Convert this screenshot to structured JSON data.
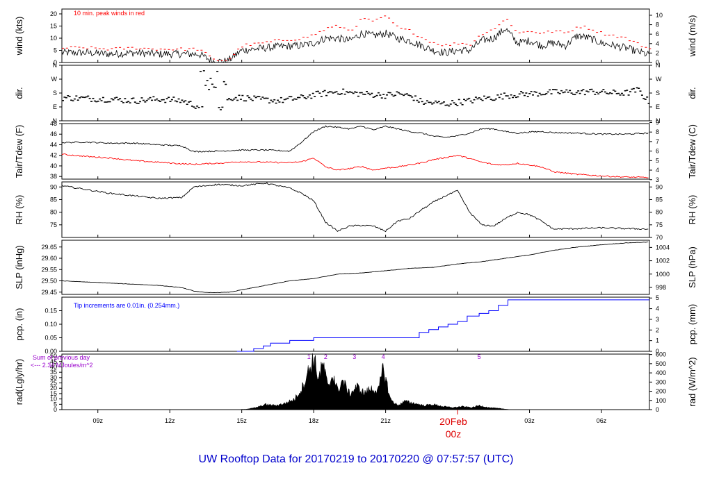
{
  "title": "UW Rooftop Data for 20170219  to  20170220 @ 07:57:57  (UTC)",
  "colors": {
    "black": "#000000",
    "red": "#ff0000",
    "blue": "#0000ff",
    "purple": "#9900cc",
    "title_blue": "#0000cc",
    "date_red": "#dd0000"
  },
  "x_axis": {
    "ticks": [
      "09z",
      "12z",
      "15z",
      "18z",
      "21z",
      "03z",
      "06z"
    ],
    "date_marker": "20Feb",
    "date_marker_hour": "00z"
  },
  "chart_data": [
    {
      "type": "line",
      "panel": "wind",
      "ylabel_left": "wind (kts)",
      "ylabel_right": "wind (m/s)",
      "yticks_left": [
        "0",
        "5",
        "10",
        "15",
        "20"
      ],
      "yticks_right": [
        "0",
        "2",
        "4",
        "6",
        "8",
        "10"
      ],
      "ylim": [
        0,
        22
      ],
      "annotation": "10 min. peak winds in red",
      "x_hours": [
        7.5,
        8.5,
        9.5,
        10.5,
        11.5,
        12.5,
        13.2,
        13.8,
        14.4,
        15.0,
        15.5,
        16.5,
        17.5,
        18.0,
        18.5,
        19.0,
        19.5,
        20.0,
        20.5,
        21.0,
        21.5,
        22.0,
        22.5,
        23.0,
        23.5,
        24.0,
        24.5,
        25.0,
        25.5,
        26.0,
        26.5,
        27.0,
        27.5,
        28.0,
        28.5,
        29.0,
        29.5,
        30.0,
        30.5,
        31.0,
        31.5,
        32.0
      ],
      "series": [
        {
          "name": "wind",
          "values": [
            4,
            4,
            3.5,
            4,
            3.5,
            3.5,
            3.5,
            0.5,
            0.5,
            5,
            5.5,
            6.5,
            7,
            8,
            10,
            10,
            9,
            12,
            11,
            12,
            10,
            9,
            7,
            5,
            4,
            5,
            5,
            9,
            10,
            14,
            8,
            9,
            7,
            8,
            7,
            11,
            10,
            8,
            7,
            6,
            4.5,
            3
          ]
        },
        {
          "name": "10 min. peak",
          "values": [
            6,
            6,
            5.5,
            6,
            5.5,
            5.5,
            5.5,
            1,
            1,
            7,
            7.5,
            9,
            10,
            11.5,
            14,
            15,
            13,
            18,
            17,
            19,
            14,
            13,
            10,
            8,
            7,
            8,
            7.5,
            12,
            14,
            18,
            12,
            13,
            12,
            13,
            12,
            15,
            14,
            12,
            11,
            10,
            7.5,
            5.5
          ]
        }
      ]
    },
    {
      "type": "scatter",
      "panel": "dir",
      "ylabel_left": "dir.",
      "ylabel_right": "dir.",
      "yticks_left": [
        "N",
        "E",
        "S",
        "W",
        "N"
      ],
      "yticks_right": [
        "N",
        "E",
        "S",
        "W",
        "N"
      ],
      "ylim": [
        0,
        360
      ],
      "x_hours": [
        7.5,
        8.5,
        9.5,
        10.5,
        11.5,
        12.5,
        13.0,
        13.3,
        13.5,
        13.7,
        14.0,
        14.5,
        15.0,
        15.5,
        16.5,
        17.5,
        18.0,
        18.5,
        19.0,
        19.5,
        20.0,
        20.5,
        21.0,
        21.5,
        22.0,
        22.5,
        23.0,
        23.5,
        24.0,
        24.5,
        25.0,
        25.5,
        26.0,
        26.5,
        27.0,
        27.5,
        28.0,
        28.5,
        29.0,
        29.5,
        30.0,
        30.5,
        31.0,
        31.5,
        32.0
      ],
      "series": [
        {
          "name": "direction",
          "values": [
            150,
            145,
            140,
            130,
            140,
            130,
            100,
            90,
            250,
            300,
            80,
            150,
            150,
            140,
            130,
            150,
            170,
            180,
            190,
            180,
            175,
            170,
            165,
            175,
            160,
            120,
            115,
            110,
            120,
            130,
            145,
            150,
            165,
            170,
            175,
            180,
            185,
            185,
            185,
            190,
            185,
            180,
            180,
            200,
            110
          ]
        }
      ]
    },
    {
      "type": "line",
      "panel": "temperature",
      "ylabel_left": "Tair/Tdew (F)",
      "ylabel_right": "Tair/Tdew (C)",
      "yticks_left": [
        "38",
        "40",
        "42",
        "44",
        "46",
        "48"
      ],
      "yticks_right": [
        "3",
        "4",
        "5",
        "6",
        "7",
        "8",
        "9"
      ],
      "ylim": [
        37.5,
        48
      ],
      "x_hours": [
        7.5,
        8.5,
        9.5,
        10.5,
        11.5,
        12.5,
        13.0,
        14.0,
        15.0,
        16.0,
        17.0,
        17.5,
        18.0,
        18.5,
        19.0,
        19.5,
        20.0,
        20.5,
        21.0,
        21.5,
        22.0,
        22.5,
        23.0,
        23.5,
        24.0,
        24.5,
        25.0,
        25.5,
        26.0,
        26.5,
        27.0,
        27.5,
        28.0,
        29.0,
        30.0,
        31.0,
        32.0
      ],
      "series": [
        {
          "name": "Tair",
          "values": [
            44.4,
            44.5,
            44.3,
            44.3,
            44.0,
            43.8,
            42.7,
            42.8,
            43.0,
            43.0,
            42.8,
            44.5,
            46.5,
            47.5,
            47.3,
            47.0,
            47.5,
            46.8,
            47.5,
            47.0,
            46.5,
            46.2,
            45.6,
            45.4,
            45.7,
            46.2,
            47.0,
            47.0,
            46.5,
            46.2,
            46.4,
            46.5,
            46.3,
            46.2,
            46.0,
            46.0,
            46.2
          ]
        },
        {
          "name": "Tdew",
          "values": [
            42.2,
            41.8,
            41.5,
            41.0,
            40.7,
            40.4,
            40.3,
            40.5,
            40.8,
            40.7,
            40.6,
            40.8,
            41.5,
            39.8,
            39.2,
            39.5,
            39.9,
            39.2,
            39.6,
            39.8,
            40.2,
            40.6,
            41.2,
            41.6,
            42.0,
            41.4,
            40.7,
            40.3,
            40.2,
            40.5,
            40.2,
            39.8,
            38.9,
            38.4,
            38.1,
            37.9,
            37.8
          ]
        }
      ]
    },
    {
      "type": "line",
      "panel": "rh",
      "ylabel_left": "RH (%)",
      "ylabel_right": "RH (%)",
      "yticks_left": [
        "75",
        "80",
        "85",
        "90"
      ],
      "yticks_right": [
        "70",
        "75",
        "80",
        "85",
        "90"
      ],
      "ylim": [
        70,
        92
      ],
      "x_hours": [
        7.5,
        8.5,
        9.5,
        10.5,
        11.5,
        12.5,
        13.0,
        14.0,
        15.0,
        16.0,
        17.0,
        17.5,
        18.0,
        18.5,
        19.0,
        19.5,
        20.0,
        20.5,
        21.0,
        21.5,
        22.0,
        22.5,
        23.0,
        23.5,
        24.0,
        24.5,
        25.0,
        25.5,
        26.0,
        26.5,
        27.0,
        27.5,
        28.0,
        29.0,
        30.0,
        31.0,
        32.0
      ],
      "series": [
        {
          "name": "RH",
          "values": [
            90.5,
            89,
            87.5,
            86.5,
            85.5,
            85.8,
            90,
            91,
            90.5,
            91.5,
            89.5,
            87.5,
            84.5,
            76,
            72.5,
            74.5,
            74.8,
            74.5,
            72.5,
            76.5,
            77.5,
            81,
            84,
            86.5,
            88.5,
            80,
            75,
            74.5,
            77.5,
            80,
            79,
            76.5,
            73.3,
            73.5,
            73.8,
            73.5,
            73.3
          ]
        }
      ]
    },
    {
      "type": "line",
      "panel": "slp",
      "ylabel_left": "SLP (inHg)",
      "ylabel_right": "SLP (hPa)",
      "yticks_left": [
        "29.45",
        "29.50",
        "29.55",
        "29.60",
        "29.65"
      ],
      "yticks_right": [
        "998",
        "1000",
        "1002",
        "1004"
      ],
      "ylim": [
        29.44,
        29.68
      ],
      "x_hours": [
        7.5,
        8.5,
        9.5,
        10.5,
        11.5,
        12.5,
        13.0,
        13.5,
        14.0,
        14.5,
        15.0,
        16.0,
        17.0,
        18.0,
        19.0,
        20.0,
        21.0,
        22.0,
        23.0,
        24.0,
        25.0,
        26.0,
        27.0,
        28.0,
        29.0,
        30.0,
        31.0,
        32.0
      ],
      "series": [
        {
          "name": "SLP",
          "values": [
            29.5,
            29.495,
            29.49,
            29.485,
            29.48,
            29.47,
            29.455,
            29.448,
            29.448,
            29.45,
            29.46,
            29.48,
            29.5,
            29.51,
            29.53,
            29.535,
            29.545,
            29.555,
            29.56,
            29.575,
            29.585,
            29.6,
            29.615,
            29.635,
            29.65,
            29.66,
            29.668,
            29.672
          ]
        }
      ]
    },
    {
      "type": "line",
      "panel": "pcp",
      "ylabel_left": "pcp. (in)",
      "ylabel_right": "pcp. (mm)",
      "yticks_left": [
        "0.00",
        "0.05",
        "0.10",
        "0.15"
      ],
      "yticks_right": [
        "0",
        "1",
        "2",
        "3",
        "4",
        "5"
      ],
      "ylim": [
        0,
        0.2
      ],
      "annotation": "Tip increments are 0.01in. (0.254mm.)",
      "x_hours": [
        7.5,
        14.8,
        15.5,
        15.9,
        16.2,
        17.0,
        17.5,
        18.0,
        20.0,
        22.0,
        22.4,
        22.8,
        23.2,
        23.6,
        24.0,
        24.4,
        24.9,
        25.3,
        25.7,
        26.1,
        32.0
      ],
      "series": [
        {
          "name": "precip",
          "values": [
            0,
            0,
            0.01,
            0.02,
            0.03,
            0.04,
            0.04,
            0.05,
            0.05,
            0.05,
            0.07,
            0.08,
            0.09,
            0.1,
            0.11,
            0.13,
            0.14,
            0.15,
            0.17,
            0.19,
            0.19
          ]
        }
      ]
    },
    {
      "type": "area",
      "panel": "rad",
      "ylabel_left": "rad(Lgly/hr)",
      "ylabel_right": "rad (W/m^2)",
      "yticks_left": [
        "0",
        "5",
        "10",
        "15",
        "20",
        "25",
        "30",
        "35",
        "40",
        "45",
        "50"
      ],
      "yticks_right": [
        "0",
        "100",
        "200",
        "300",
        "400",
        "500",
        "600"
      ],
      "ylim": [
        0,
        52
      ],
      "annotations": [
        "Sum of previous day",
        "<--- 2.34 MJoules/m^2"
      ],
      "markers": [
        "1",
        "2",
        "3",
        "4",
        "5"
      ],
      "marker_hours": [
        17.8,
        18.5,
        19.7,
        20.9,
        24.9
      ],
      "x_hours": [
        14.8,
        15.2,
        15.6,
        16.0,
        16.4,
        16.8,
        17.2,
        17.5,
        17.8,
        18.0,
        18.2,
        18.4,
        18.6,
        18.8,
        19.0,
        19.2,
        19.5,
        19.8,
        20.1,
        20.4,
        20.7,
        20.9,
        21.2,
        21.5,
        21.8,
        22.2,
        22.6,
        23.0,
        23.4,
        23.8,
        24.2,
        24.6,
        24.9,
        25.3,
        25.8,
        26.2
      ],
      "series": [
        {
          "name": "radiation",
          "values": [
            0,
            0.5,
            2,
            5,
            4,
            6,
            10,
            20,
            38,
            50,
            30,
            44,
            20,
            35,
            18,
            28,
            15,
            22,
            16,
            20,
            18,
            40,
            10,
            4,
            8,
            6,
            4,
            5,
            3,
            2,
            3,
            2,
            4,
            2,
            1,
            0
          ]
        }
      ]
    }
  ]
}
